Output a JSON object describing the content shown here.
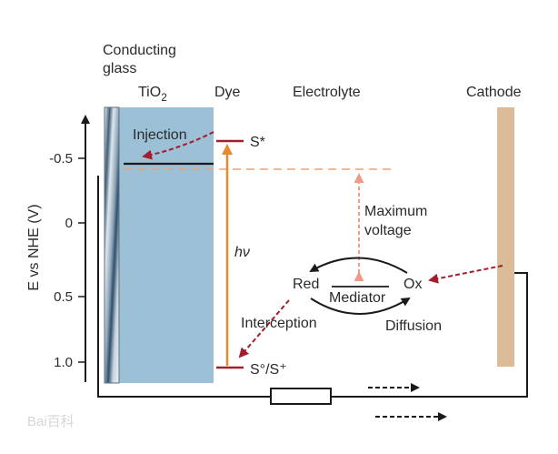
{
  "labels": {
    "conducting_glass_line1": "Conducting",
    "conducting_glass_line2": "glass",
    "tio2_base": "TiO",
    "tio2_sub": "2",
    "dye": "Dye",
    "electrolyte": "Electrolyte",
    "cathode": "Cathode",
    "injection": "Injection",
    "s_star": "S*",
    "hv": "hν",
    "max_voltage_line1": "Maximum",
    "max_voltage_line2": "voltage",
    "red": "Red",
    "ox": "Ox",
    "mediator": "Mediator",
    "interception": "Interception",
    "diffusion": "Diffusion",
    "s_ground": "S°/S⁺"
  },
  "axis": {
    "title": "E vs NHE (V)",
    "ticks": [
      "-0.5",
      "0",
      "0.5",
      "1.0"
    ]
  },
  "watermark": "Bai百科",
  "colors": {
    "tio2": "#9cc0d6",
    "cathode": "#dcbc98",
    "orange": "#e8892e",
    "dark_red": "#a41d2c",
    "salmon": "#ef9a86",
    "black": "#1a1a1a"
  },
  "icons": {
    "resistor": "resistor-icon",
    "electron_flow_arrow": "dashed-arrow-icon"
  }
}
